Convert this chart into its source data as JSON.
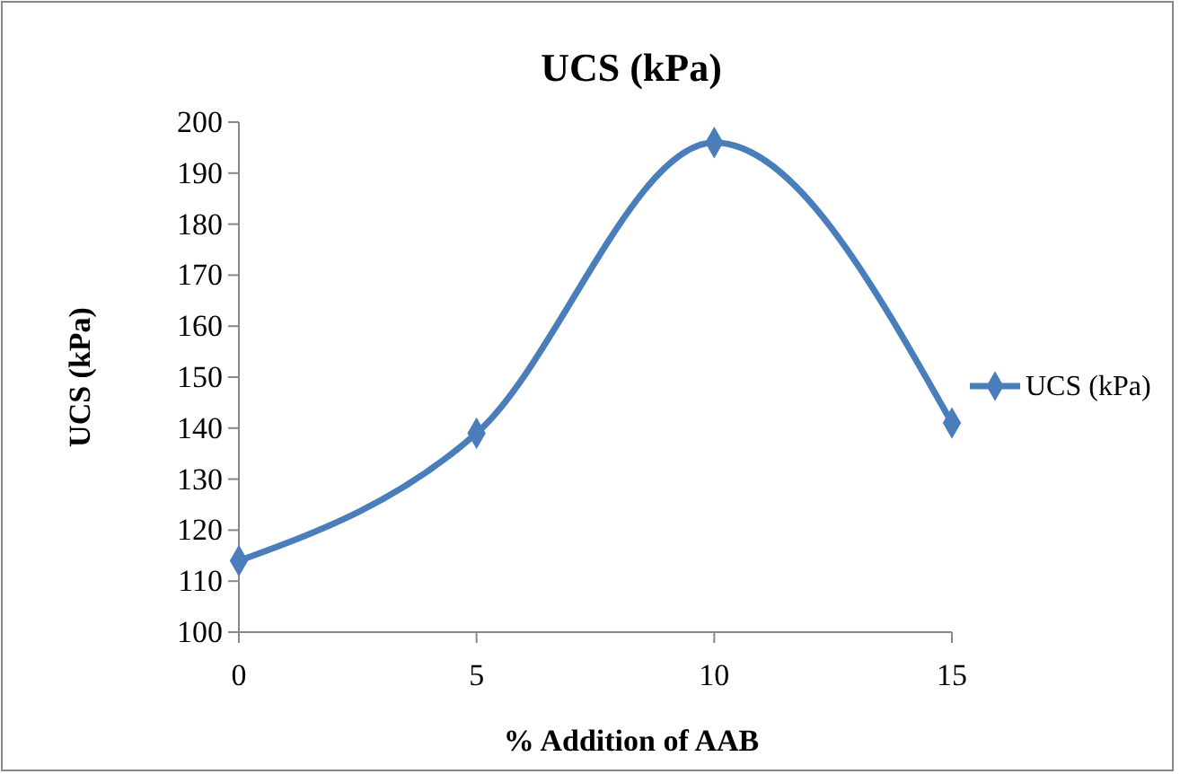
{
  "chart_data": {
    "type": "line",
    "title": "UCS (kPa)",
    "xlabel": "% Addition of AAB",
    "ylabel": "UCS (kPa)",
    "x": [
      0,
      5,
      10,
      15
    ],
    "series": [
      {
        "name": "UCS (kPa)",
        "color": "#4a7ebb",
        "values": [
          114,
          139,
          196,
          141
        ]
      }
    ],
    "xlim": [
      0,
      15
    ],
    "xticks": [
      0,
      5,
      10,
      15
    ],
    "ylim": [
      100,
      200
    ],
    "yticks": [
      100,
      110,
      120,
      130,
      140,
      150,
      160,
      170,
      180,
      190,
      200
    ],
    "legend": "right",
    "marker": "diamond",
    "line_style": "solid",
    "grid": false
  }
}
